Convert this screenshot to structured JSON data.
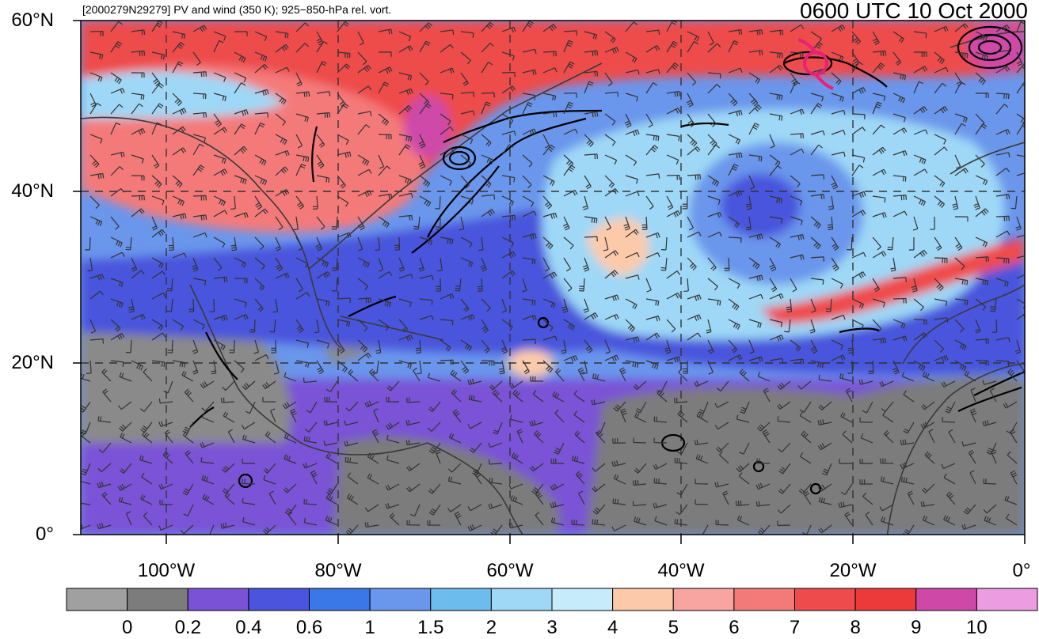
{
  "title": {
    "left": "[2000279N29279] PV and wind (350 K); 925−850-hPa rel. vort.",
    "right": "0600 UTC 10 Oct 2000"
  },
  "lat_labels": [
    "60°N",
    "40°N",
    "20°N",
    "0°"
  ],
  "lat_values": [
    60,
    40,
    20,
    0
  ],
  "lon_labels": [
    "100°W",
    "80°W",
    "60°W",
    "40°W",
    "20°W",
    "0°"
  ],
  "lon_values": [
    -100,
    -80,
    -60,
    -40,
    -20,
    0
  ],
  "map_extent": {
    "lon": [
      -110,
      0
    ],
    "lat": [
      0,
      60
    ]
  },
  "colorbar": {
    "labels": [
      "0",
      "0.2",
      "0.4",
      "0.6",
      "1",
      "1.5",
      "2",
      "3",
      "4",
      "5",
      "6",
      "7",
      "8",
      "9",
      "10"
    ],
    "colors": [
      "#a0a0a0",
      "#7c7c7c",
      "#7a52d6",
      "#4a54dc",
      "#3a78e8",
      "#6a96ec",
      "#6cbcee",
      "#9ed8f6",
      "#c6ecfc",
      "#fccaaa",
      "#f8a4a0",
      "#f47a7a",
      "#ee4c4c",
      "#ec3a3a",
      "#ce48a8",
      "#ec9ce0"
    ]
  },
  "storm_symbol_color": "#e8207a"
}
